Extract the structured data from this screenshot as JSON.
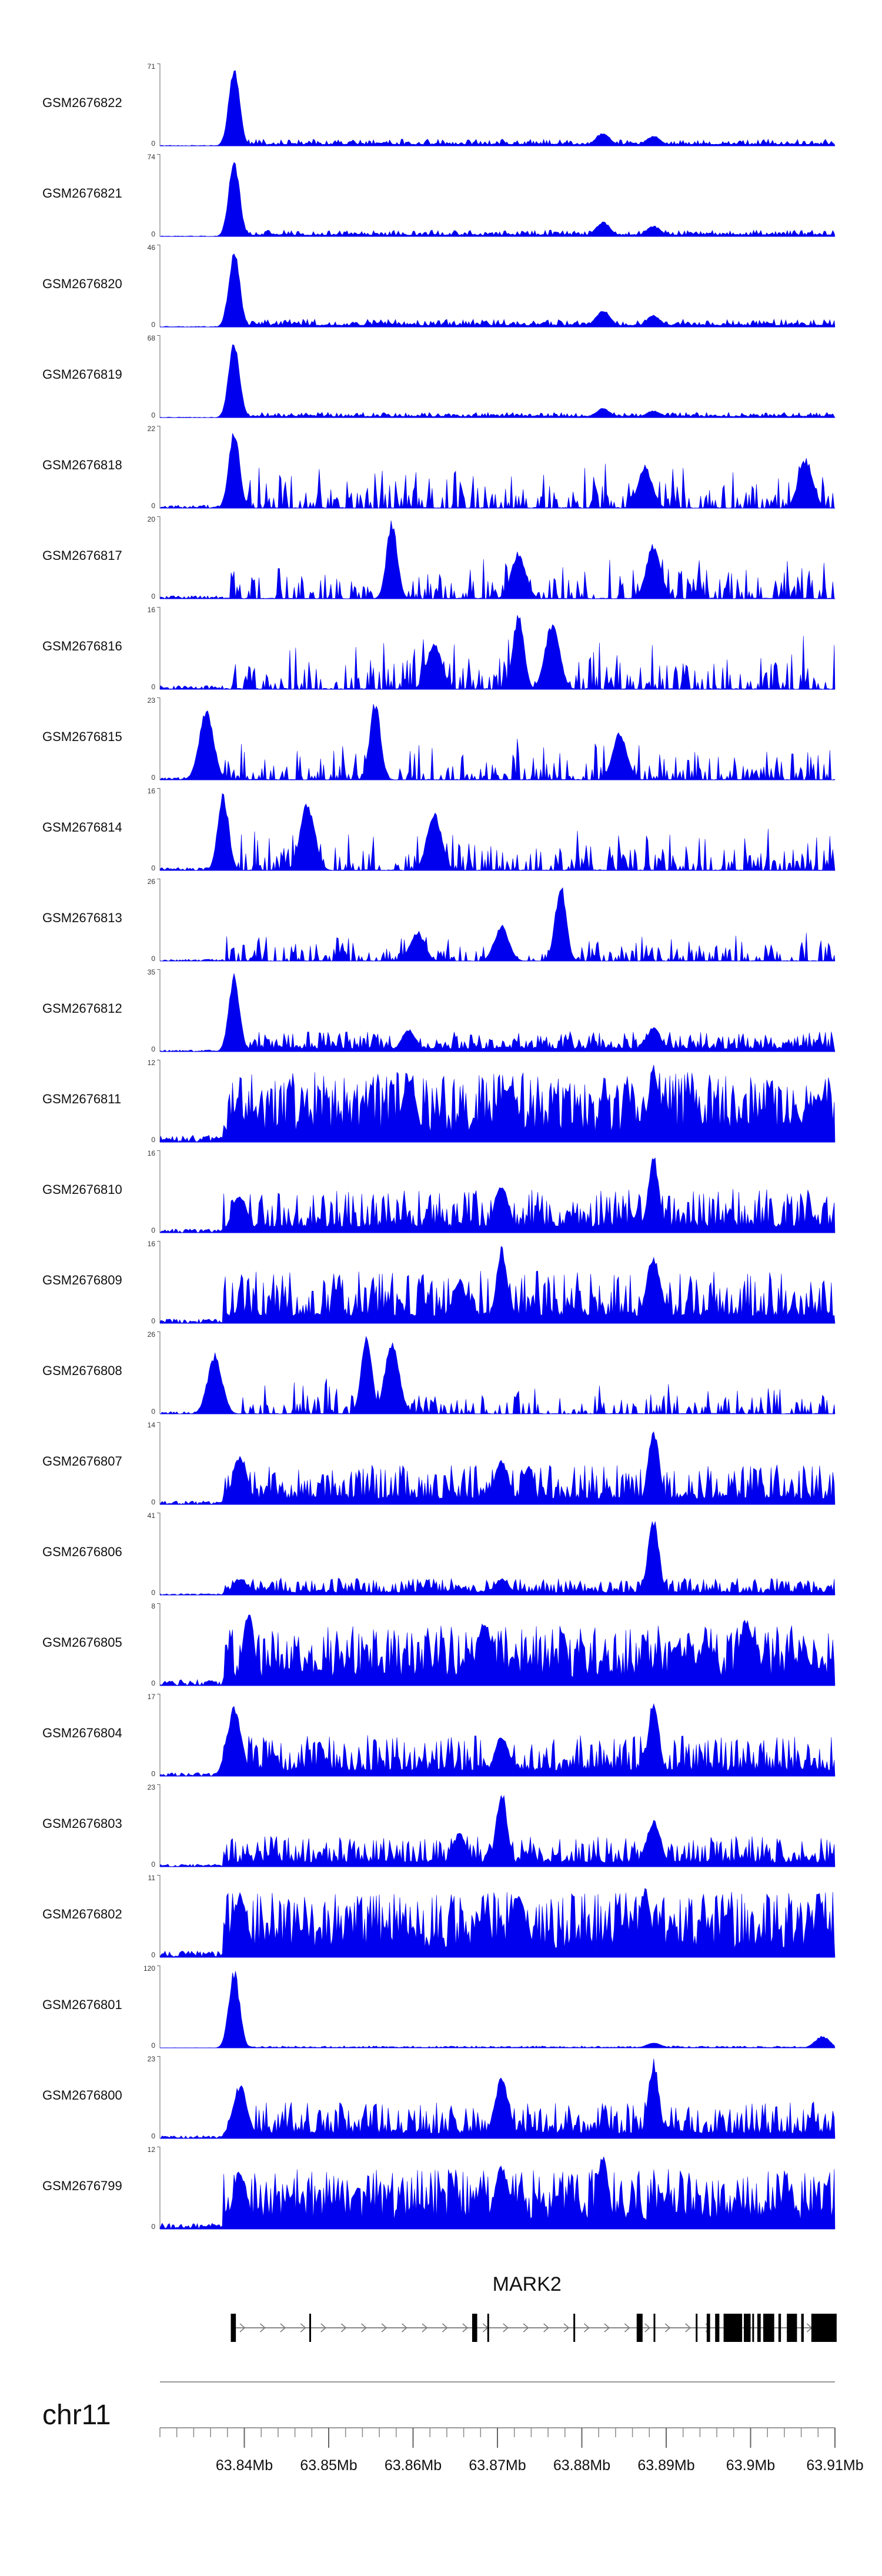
{
  "chart_data": {
    "type": "area",
    "title": "",
    "region": {
      "chromosome": "chr11",
      "start_mb": 63.83,
      "end_mb": 63.91
    },
    "signal_color": "#0000ee",
    "tracks": [
      {
        "name": "GSM2676822",
        "ymax": "71",
        "ymin": "0",
        "peaks": [
          [
            63.8388,
            71
          ],
          [
            63.8825,
            12
          ],
          [
            63.8885,
            9
          ]
        ],
        "base": 4,
        "style": "sharp"
      },
      {
        "name": "GSM2676821",
        "ymax": "74",
        "ymin": "0",
        "peaks": [
          [
            63.8388,
            74
          ],
          [
            63.8825,
            14
          ],
          [
            63.8885,
            10
          ]
        ],
        "base": 4,
        "style": "sharp"
      },
      {
        "name": "GSM2676820",
        "ymax": "46",
        "ymin": "0",
        "peaks": [
          [
            63.8388,
            46
          ],
          [
            63.8825,
            10
          ],
          [
            63.8885,
            7
          ]
        ],
        "base": 3,
        "style": "sharp"
      },
      {
        "name": "GSM2676819",
        "ymax": "68",
        "ymin": "0",
        "peaks": [
          [
            63.8388,
            68
          ],
          [
            63.8825,
            8
          ],
          [
            63.8885,
            6
          ]
        ],
        "base": 3,
        "style": "sharp"
      },
      {
        "name": "GSM2676818",
        "ymax": "22",
        "ymin": "0",
        "peaks": [
          [
            63.8388,
            22
          ],
          [
            63.8875,
            12
          ],
          [
            63.9065,
            14
          ]
        ],
        "base": 6,
        "style": "spiky"
      },
      {
        "name": "GSM2676817",
        "ymax": "20",
        "ymin": "0",
        "peaks": [
          [
            63.8575,
            20
          ],
          [
            63.8725,
            12
          ],
          [
            63.8885,
            14
          ]
        ],
        "base": 5,
        "style": "spiky"
      },
      {
        "name": "GSM2676816",
        "ymax": "16",
        "ymin": "0",
        "peaks": [
          [
            63.8725,
            16
          ],
          [
            63.8765,
            14
          ],
          [
            63.8625,
            10
          ]
        ],
        "base": 5,
        "style": "spiky"
      },
      {
        "name": "GSM2676815",
        "ymax": "23",
        "ymin": "0",
        "peaks": [
          [
            63.8555,
            23
          ],
          [
            63.8355,
            21
          ],
          [
            63.8845,
            14
          ]
        ],
        "base": 5,
        "style": "spiky"
      },
      {
        "name": "GSM2676814",
        "ymax": "16",
        "ymin": "0",
        "peaks": [
          [
            63.8375,
            16
          ],
          [
            63.8475,
            14
          ],
          [
            63.8625,
            12
          ]
        ],
        "base": 4,
        "style": "spiky"
      },
      {
        "name": "GSM2676813",
        "ymax": "26",
        "ymin": "0",
        "peaks": [
          [
            63.8775,
            26
          ],
          [
            63.8705,
            12
          ],
          [
            63.8605,
            10
          ]
        ],
        "base": 4,
        "style": "spiky"
      },
      {
        "name": "GSM2676812",
        "ymax": "35",
        "ymin": "0",
        "peaks": [
          [
            63.8388,
            35
          ],
          [
            63.8595,
            10
          ],
          [
            63.8885,
            11
          ]
        ],
        "base": 5,
        "style": "noisy"
      },
      {
        "name": "GSM2676811",
        "ymax": "12",
        "ymin": "0",
        "peaks": [
          [
            63.8885,
            12
          ],
          [
            63.8595,
            10
          ],
          [
            63.8715,
            9
          ]
        ],
        "base": 7,
        "style": "dense"
      },
      {
        "name": "GSM2676810",
        "ymax": "16",
        "ymin": "0",
        "peaks": [
          [
            63.8885,
            16
          ],
          [
            63.8705,
            10
          ],
          [
            63.8395,
            8
          ]
        ],
        "base": 5,
        "style": "noisy"
      },
      {
        "name": "GSM2676809",
        "ymax": "16",
        "ymin": "0",
        "peaks": [
          [
            63.8705,
            16
          ],
          [
            63.8885,
            14
          ],
          [
            63.8655,
            9
          ]
        ],
        "base": 6,
        "style": "noisy"
      },
      {
        "name": "GSM2676808",
        "ymax": "26",
        "ymin": "0",
        "peaks": [
          [
            63.8545,
            26
          ],
          [
            63.8575,
            24
          ],
          [
            63.8365,
            20
          ]
        ],
        "base": 5,
        "style": "spiky"
      },
      {
        "name": "GSM2676807",
        "ymax": "14",
        "ymin": "0",
        "peaks": [
          [
            63.8885,
            14
          ],
          [
            63.8395,
            9
          ],
          [
            63.8705,
            8
          ]
        ],
        "base": 4,
        "style": "noisy"
      },
      {
        "name": "GSM2676806",
        "ymax": "41",
        "ymin": "0",
        "peaks": [
          [
            63.8885,
            41
          ],
          [
            63.8395,
            9
          ],
          [
            63.8705,
            9
          ]
        ],
        "base": 5,
        "style": "noisy"
      },
      {
        "name": "GSM2676805",
        "ymax": "8",
        "ymin": "0",
        "peaks": [
          [
            63.8405,
            8
          ],
          [
            63.8685,
            7
          ],
          [
            63.8995,
            7
          ]
        ],
        "base": 4,
        "style": "dense"
      },
      {
        "name": "GSM2676804",
        "ymax": "17",
        "ymin": "0",
        "peaks": [
          [
            63.8885,
            17
          ],
          [
            63.8388,
            15
          ],
          [
            63.8705,
            9
          ]
        ],
        "base": 5,
        "style": "noisy"
      },
      {
        "name": "GSM2676803",
        "ymax": "23",
        "ymin": "0",
        "peaks": [
          [
            63.8705,
            23
          ],
          [
            63.8885,
            14
          ],
          [
            63.8655,
            10
          ]
        ],
        "base": 5,
        "style": "noisy"
      },
      {
        "name": "GSM2676802",
        "ymax": "11",
        "ymin": "0",
        "peaks": [
          [
            63.8875,
            10
          ],
          [
            63.8725,
            9
          ],
          [
            63.8395,
            9
          ]
        ],
        "base": 6,
        "style": "dense"
      },
      {
        "name": "GSM2676801",
        "ymax": "120",
        "ymin": "0",
        "peaks": [
          [
            63.8388,
            120
          ],
          [
            63.9085,
            18
          ],
          [
            63.8885,
            8
          ]
        ],
        "base": 2,
        "style": "sharp"
      },
      {
        "name": "GSM2676800",
        "ymax": "23",
        "ymin": "0",
        "peaks": [
          [
            63.8885,
            23
          ],
          [
            63.8705,
            18
          ],
          [
            63.8395,
            16
          ]
        ],
        "base": 6,
        "style": "noisy"
      },
      {
        "name": "GSM2676799",
        "ymax": "12",
        "ymin": "0",
        "peaks": [
          [
            63.8825,
            12
          ],
          [
            63.8705,
            10
          ],
          [
            63.8395,
            9
          ]
        ],
        "base": 6,
        "style": "dense"
      }
    ],
    "gene": {
      "name": "MARK2",
      "strand": "+",
      "start_mb": 63.8384,
      "end_mb": 63.9102,
      "exons_mb": [
        [
          63.8384,
          63.839
        ],
        [
          63.8477,
          63.8479
        ],
        [
          63.867,
          63.8676
        ],
        [
          63.8688,
          63.869
        ],
        [
          63.879,
          63.8792
        ],
        [
          63.8865,
          63.8872
        ],
        [
          63.8885,
          63.8887
        ],
        [
          63.8935,
          63.8937
        ],
        [
          63.8948,
          63.8952
        ],
        [
          63.8958,
          63.8963
        ],
        [
          63.8968,
          63.899
        ],
        [
          63.8992,
          63.9
        ],
        [
          63.9002,
          63.9004
        ],
        [
          63.9008,
          63.9012
        ],
        [
          63.9015,
          63.9028
        ],
        [
          63.9033,
          63.9036
        ],
        [
          63.9043,
          63.9055
        ],
        [
          63.906,
          63.9063
        ],
        [
          63.9072,
          63.9102
        ]
      ]
    },
    "axis": {
      "chromosome_label": "chr11",
      "major_ticks_mb": [
        63.84,
        63.85,
        63.86,
        63.87,
        63.88,
        63.89,
        63.9,
        63.91
      ],
      "tick_labels": [
        "63.84Mb",
        "63.85Mb",
        "63.86Mb",
        "63.87Mb",
        "63.88Mb",
        "63.89Mb",
        "63.9Mb",
        "63.91Mb"
      ],
      "minor_tick_step_mb": 0.002
    }
  }
}
